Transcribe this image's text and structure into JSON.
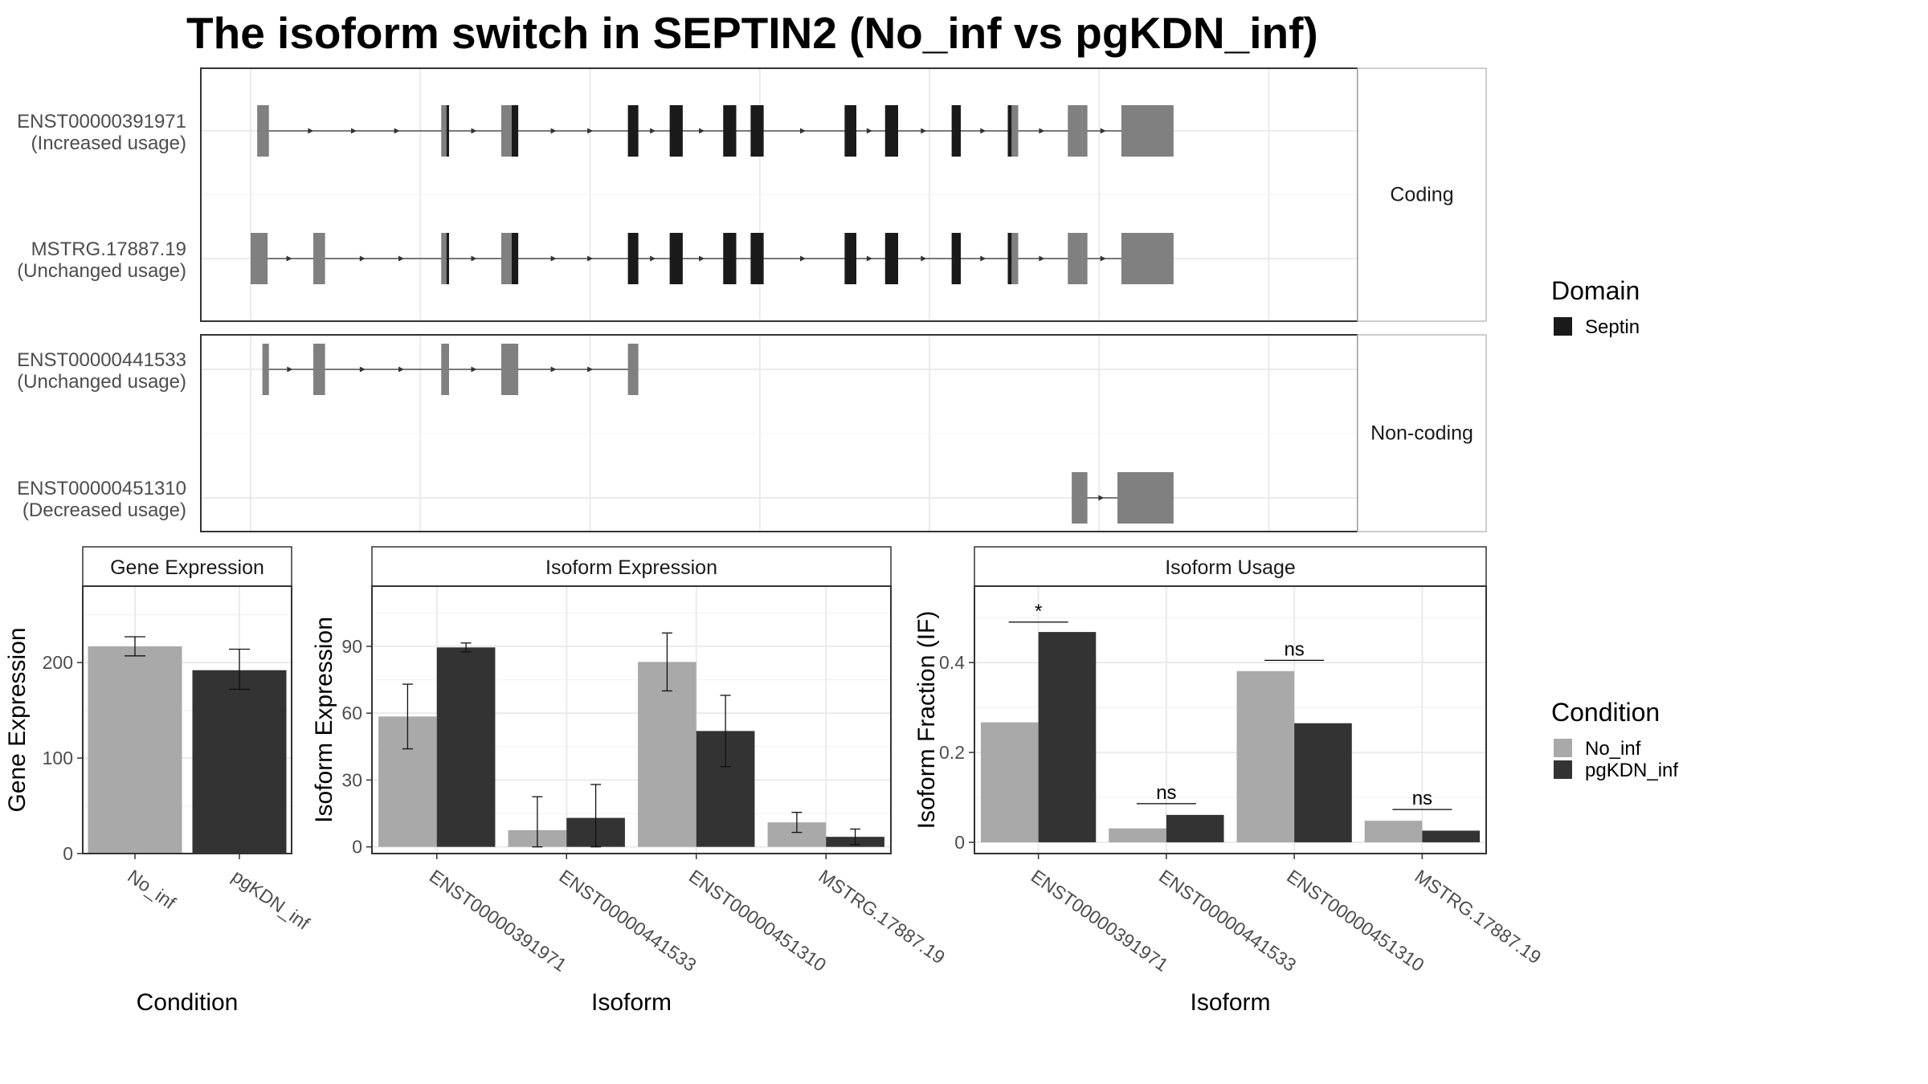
{
  "title": "The isoform switch in SEPTIN2 (No_inf vs pgKDN_inf)",
  "colors": {
    "no_inf": "#a9a9a9",
    "pgkdn_inf": "#333333",
    "utr_exon": "#808080",
    "domain": "#1a1a1a",
    "strip_bg": "#ffffff",
    "grid": "#ebebeb",
    "panel_border": "#333333"
  },
  "legend": {
    "domain": {
      "title": "Domain",
      "items": [
        {
          "label": "Septin",
          "color": "#1a1a1a"
        }
      ]
    },
    "condition": {
      "title": "Condition",
      "items": [
        {
          "label": "No_inf",
          "color": "#a9a9a9"
        },
        {
          "label": "pgKDN_inf",
          "color": "#333333"
        }
      ]
    }
  },
  "chart_data": [
    {
      "type": "gene_structure",
      "genome_range": [
        0,
        850
      ],
      "facets": [
        {
          "strip": "Coding",
          "transcripts": [
            {
              "id": "ENST00000391971",
              "status": "(Increased usage)",
              "exons": [
                {
                  "start": 5,
                  "end": 14,
                  "kind": "utr"
                },
                {
                  "start": 146,
                  "end": 150,
                  "kind": "utr"
                },
                {
                  "start": 150,
                  "end": 152,
                  "kind": "domain"
                },
                {
                  "start": 192,
                  "end": 200,
                  "kind": "utr"
                },
                {
                  "start": 200,
                  "end": 205,
                  "kind": "domain"
                },
                {
                  "start": 289,
                  "end": 297,
                  "kind": "domain"
                },
                {
                  "start": 321,
                  "end": 331,
                  "kind": "domain"
                },
                {
                  "start": 362,
                  "end": 372,
                  "kind": "domain"
                },
                {
                  "start": 383,
                  "end": 393,
                  "kind": "domain"
                },
                {
                  "start": 455,
                  "end": 464,
                  "kind": "domain"
                },
                {
                  "start": 486,
                  "end": 496,
                  "kind": "domain"
                },
                {
                  "start": 537,
                  "end": 544,
                  "kind": "domain"
                },
                {
                  "start": 580,
                  "end": 583,
                  "kind": "domain"
                },
                {
                  "start": 583,
                  "end": 588,
                  "kind": "utr"
                },
                {
                  "start": 626,
                  "end": 637,
                  "kind": "utr"
                },
                {
                  "start": 637,
                  "end": 641,
                  "kind": "utr"
                },
                {
                  "start": 667,
                  "end": 707,
                  "kind": "utr"
                }
              ]
            },
            {
              "id": "MSTRG.17887.19",
              "status": "(Unchanged usage)",
              "exons": [
                {
                  "start": 0,
                  "end": 13,
                  "kind": "utr"
                },
                {
                  "start": 48,
                  "end": 57,
                  "kind": "utr"
                },
                {
                  "start": 146,
                  "end": 150,
                  "kind": "utr"
                },
                {
                  "start": 150,
                  "end": 152,
                  "kind": "domain"
                },
                {
                  "start": 192,
                  "end": 200,
                  "kind": "utr"
                },
                {
                  "start": 200,
                  "end": 205,
                  "kind": "domain"
                },
                {
                  "start": 289,
                  "end": 297,
                  "kind": "domain"
                },
                {
                  "start": 321,
                  "end": 331,
                  "kind": "domain"
                },
                {
                  "start": 362,
                  "end": 372,
                  "kind": "domain"
                },
                {
                  "start": 383,
                  "end": 393,
                  "kind": "domain"
                },
                {
                  "start": 455,
                  "end": 464,
                  "kind": "domain"
                },
                {
                  "start": 486,
                  "end": 496,
                  "kind": "domain"
                },
                {
                  "start": 537,
                  "end": 544,
                  "kind": "domain"
                },
                {
                  "start": 580,
                  "end": 583,
                  "kind": "domain"
                },
                {
                  "start": 583,
                  "end": 588,
                  "kind": "utr"
                },
                {
                  "start": 626,
                  "end": 637,
                  "kind": "utr"
                },
                {
                  "start": 637,
                  "end": 641,
                  "kind": "utr"
                },
                {
                  "start": 667,
                  "end": 707,
                  "kind": "utr"
                }
              ]
            }
          ]
        },
        {
          "strip": "Non-coding",
          "transcripts": [
            {
              "id": "ENST00000441533",
              "status": "(Unchanged usage)",
              "exons": [
                {
                  "start": 9,
                  "end": 14,
                  "kind": "utr"
                },
                {
                  "start": 48,
                  "end": 57,
                  "kind": "utr"
                },
                {
                  "start": 146,
                  "end": 152,
                  "kind": "utr"
                },
                {
                  "start": 192,
                  "end": 205,
                  "kind": "utr"
                },
                {
                  "start": 289,
                  "end": 297,
                  "kind": "utr"
                }
              ]
            },
            {
              "id": "ENST00000451310",
              "status": "(Decreased usage)",
              "exons": [
                {
                  "start": 629,
                  "end": 641,
                  "kind": "utr"
                },
                {
                  "start": 664,
                  "end": 707,
                  "kind": "utr"
                }
              ]
            }
          ]
        }
      ]
    },
    {
      "type": "bar",
      "strip": "Gene Expression",
      "xlabel": "Condition",
      "ylabel": "Gene Expression",
      "ylim": [
        0,
        280
      ],
      "yticks": [
        0,
        100,
        200
      ],
      "categories": [
        "No_inf",
        "pgKDN_inf"
      ],
      "values": [
        217,
        192
      ],
      "errors": [
        [
          207,
          227
        ],
        [
          172,
          214
        ]
      ]
    },
    {
      "type": "bar",
      "strip": "Isoform Expression",
      "xlabel": "Isoform",
      "ylabel": "Isoform Expression",
      "ylim": [
        -3,
        117
      ],
      "yticks": [
        0,
        30,
        60,
        90
      ],
      "categories": [
        "ENST00000391971",
        "ENST00000441533",
        "ENST00000451310",
        "MSTRG.17887.19"
      ],
      "series": [
        {
          "name": "No_inf",
          "values": [
            58.5,
            7.5,
            83,
            11
          ],
          "errors": [
            [
              44,
              73
            ],
            [
              0,
              22.5
            ],
            [
              70,
              96
            ],
            [
              6.5,
              15.5
            ]
          ]
        },
        {
          "name": "pgKDN_inf",
          "values": [
            89.5,
            13,
            52,
            4.5
          ],
          "errors": [
            [
              87.5,
              91.5
            ],
            [
              0,
              28
            ],
            [
              36,
              68
            ],
            [
              1,
              8
            ]
          ]
        }
      ]
    },
    {
      "type": "bar",
      "strip": "Isoform Usage",
      "xlabel": "Isoform",
      "ylabel": "Isoform Fraction (IF)",
      "ylim": [
        -0.025,
        0.57
      ],
      "yticks": [
        0.0,
        0.2,
        0.4
      ],
      "categories": [
        "ENST00000391971",
        "ENST00000441533",
        "ENST00000451310",
        "MSTRG.17887.19"
      ],
      "series": [
        {
          "name": "No_inf",
          "values": [
            0.267,
            0.031,
            0.381,
            0.048
          ]
        },
        {
          "name": "pgKDN_inf",
          "values": [
            0.468,
            0.061,
            0.265,
            0.026
          ]
        }
      ],
      "significance": [
        {
          "label": "*",
          "level": 0.49
        },
        {
          "label": "ns",
          "level": 0.086
        },
        {
          "label": "ns",
          "level": 0.405
        },
        {
          "label": "ns",
          "level": 0.073
        }
      ]
    }
  ]
}
